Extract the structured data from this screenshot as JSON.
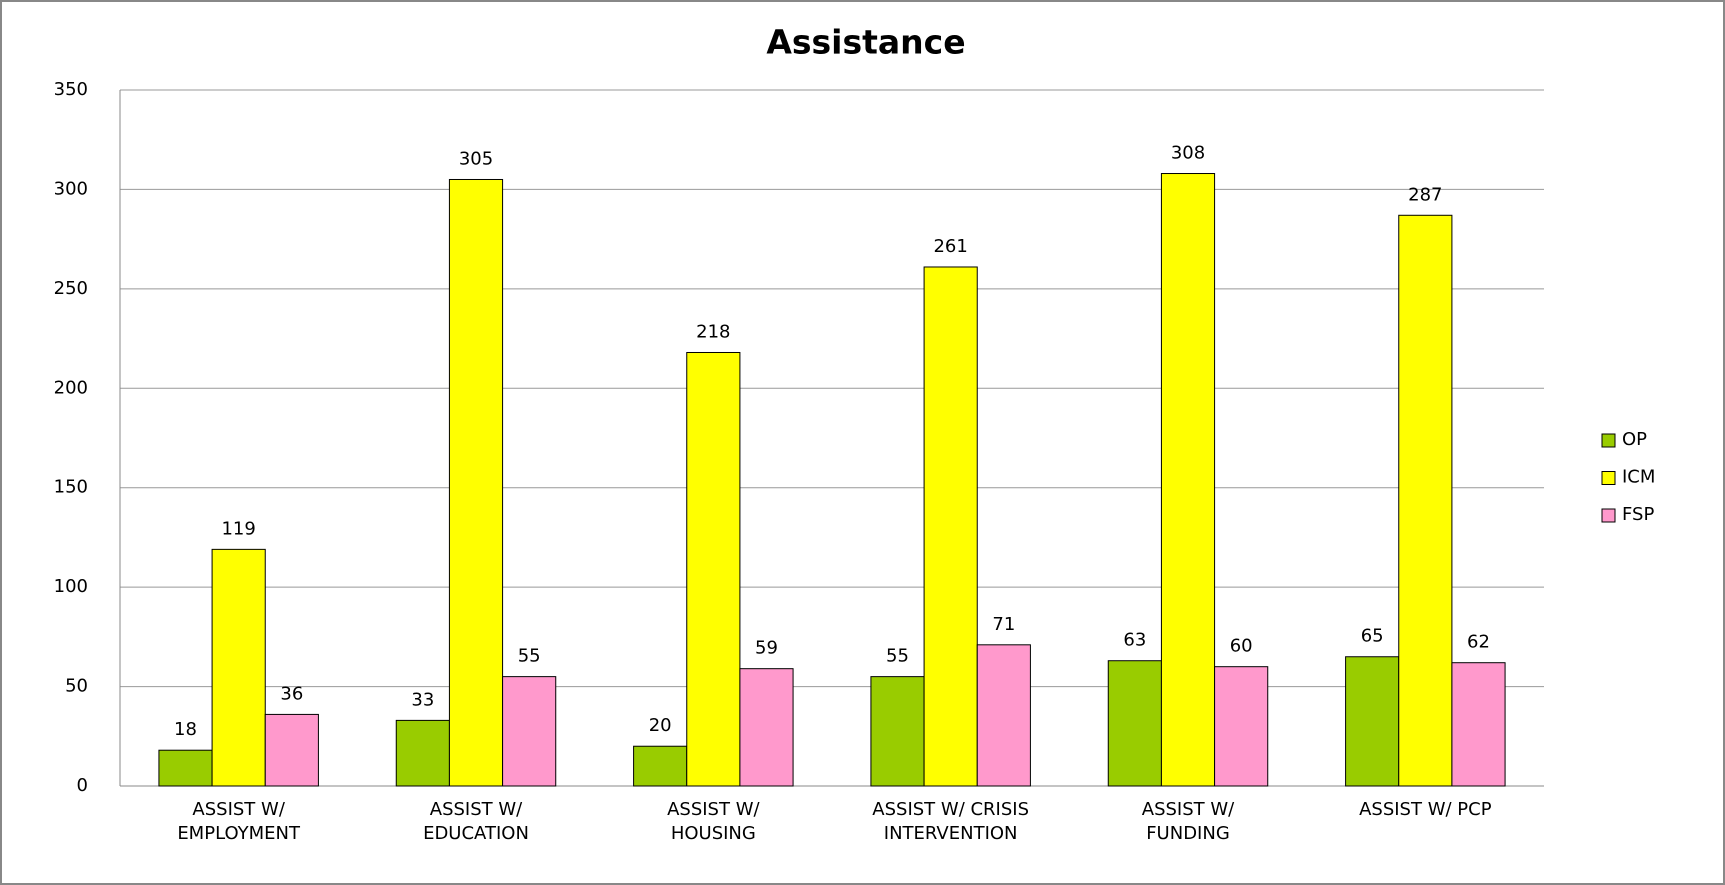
{
  "chart_data": {
    "type": "bar",
    "title": "Assistance",
    "categories": [
      "ASSIST W/ EMPLOYMENT",
      "ASSIST W/ EDUCATION",
      "ASSIST W/ HOUSING",
      "ASSIST W/ CRISIS INTERVENTION",
      "ASSIST W/ FUNDING",
      "ASSIST W/ PCP"
    ],
    "series": [
      {
        "name": "OP",
        "color": "#99cc00",
        "values": [
          18,
          33,
          20,
          55,
          63,
          65
        ]
      },
      {
        "name": "ICM",
        "color": "#ffff00",
        "values": [
          119,
          305,
          218,
          261,
          308,
          287
        ]
      },
      {
        "name": "FSP",
        "color": "#ff99cc",
        "values": [
          36,
          55,
          59,
          71,
          60,
          62
        ]
      }
    ],
    "ylim": [
      0,
      350
    ],
    "yticks": [
      0,
      50,
      100,
      150,
      200,
      250,
      300,
      350
    ],
    "grid": true,
    "legend": "right"
  }
}
